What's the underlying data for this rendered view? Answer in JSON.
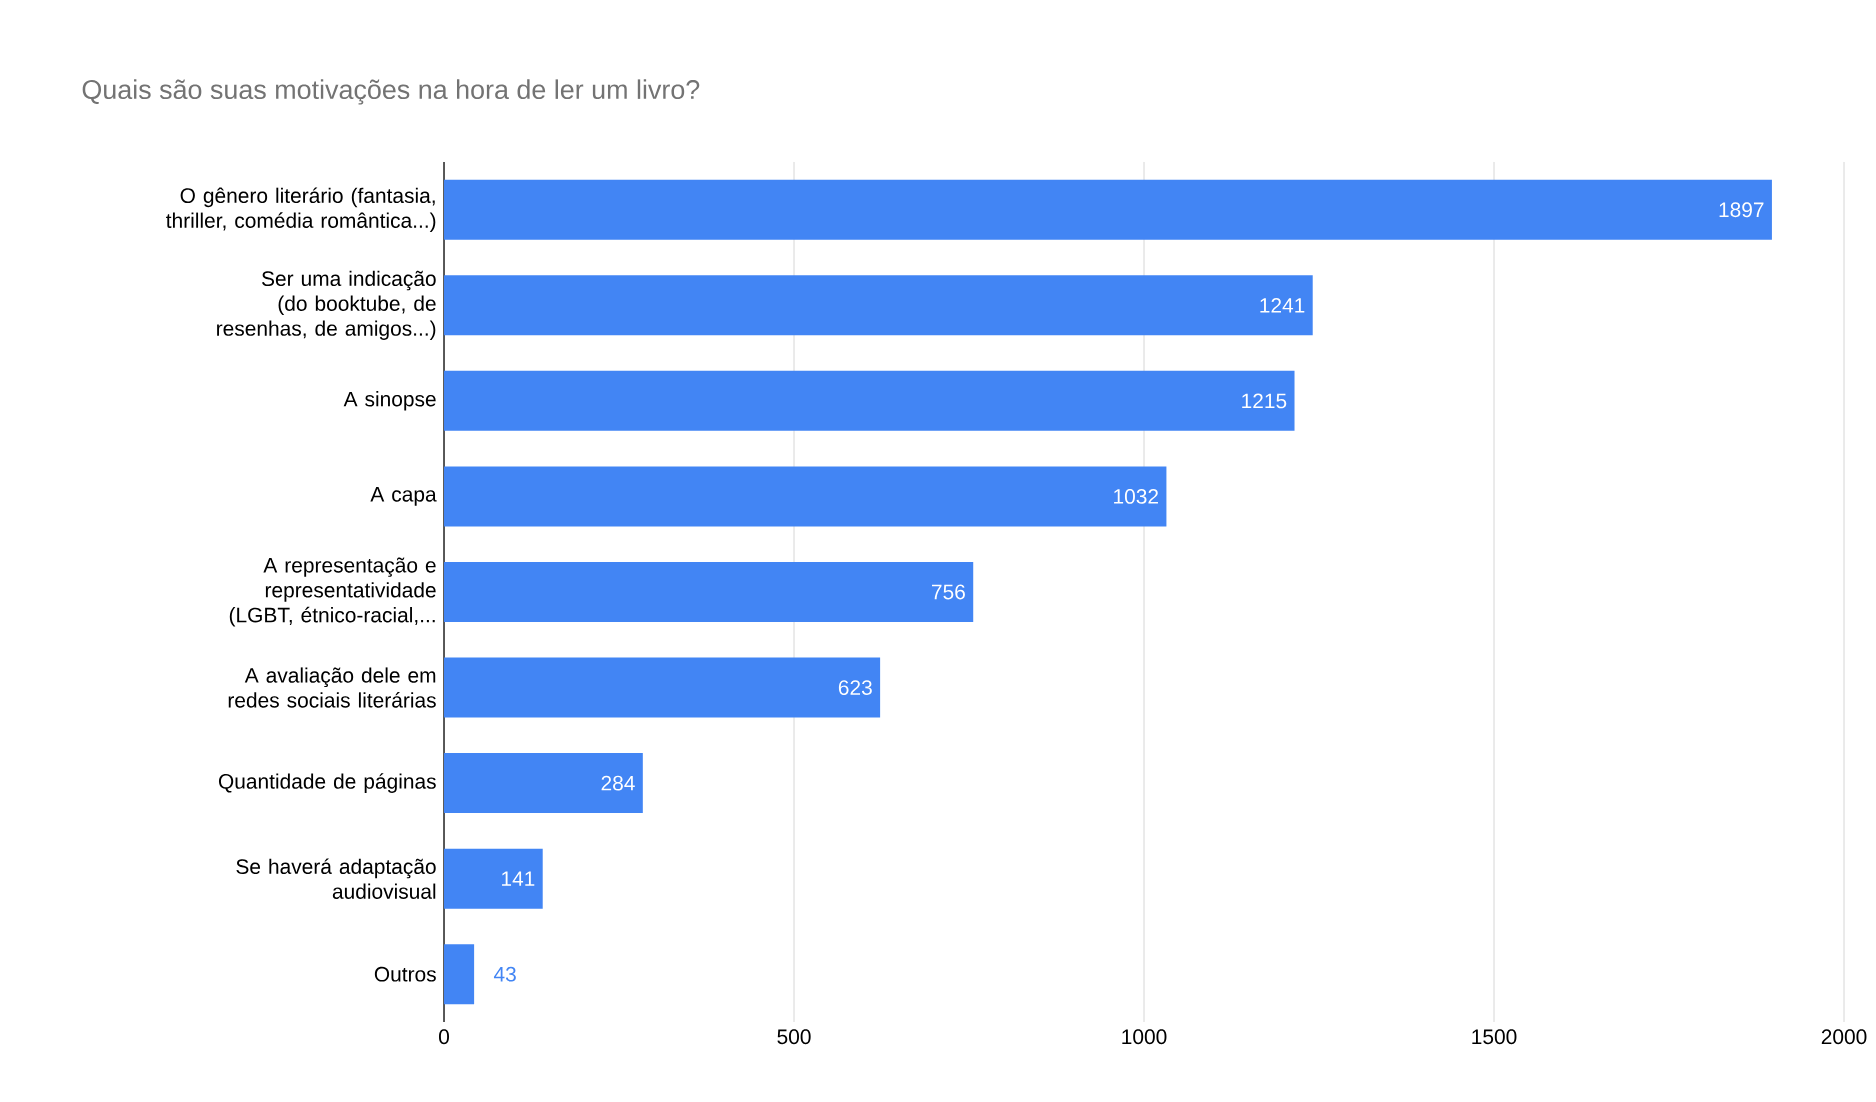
{
  "chart_data": {
    "type": "bar",
    "orientation": "horizontal",
    "title": "Quais são suas motivações na hora de ler um livro?",
    "categories": [
      "O gênero literário (fantasia, thriller, comédia romântica...)",
      "Ser uma indicação (do booktube, de resenhas, de amigos...)",
      "A sinopse",
      "A capa",
      "A representação e representatividade (LGBT, étnico-racial,...",
      "A avaliação dele em redes sociais literárias",
      "Quantidade de páginas",
      "Se haverá adaptação audiovisual",
      "Outros"
    ],
    "values": [
      1897,
      1241,
      1215,
      1032,
      756,
      623,
      284,
      141,
      43
    ],
    "color": "#4285f4",
    "data_labels": true,
    "grid": "x",
    "xlim": [
      0,
      2000
    ],
    "xticks": [
      0,
      500,
      1000,
      1500,
      2000
    ]
  }
}
